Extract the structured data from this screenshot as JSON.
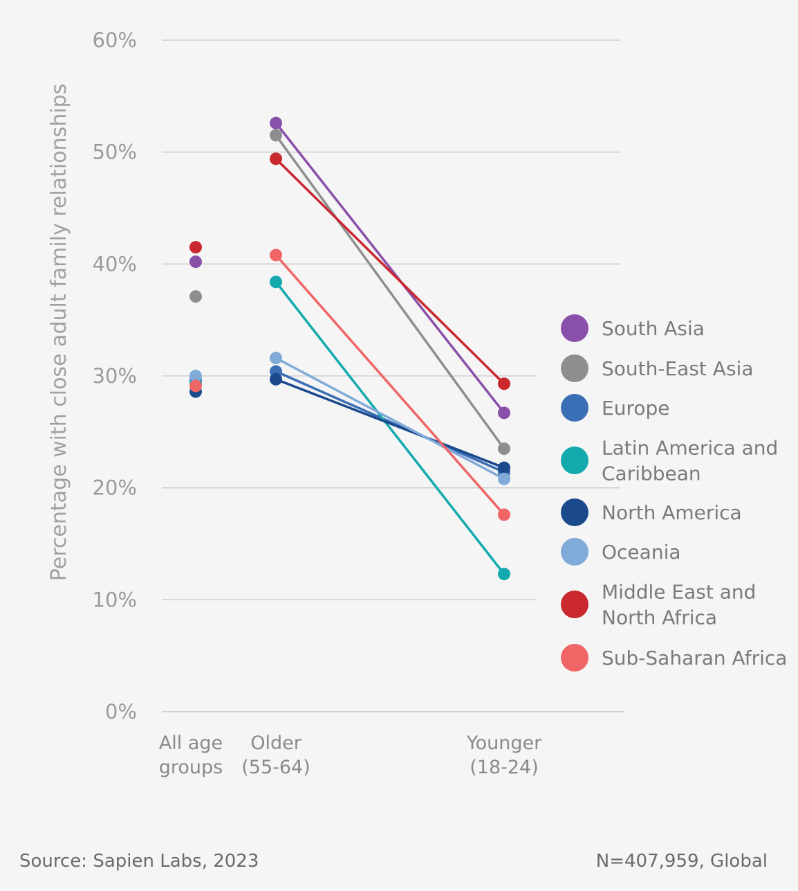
{
  "chart_data": {
    "type": "line",
    "ylabel": "Percentage with close adult family relationships",
    "ylim": [
      0,
      60
    ],
    "yticks": [
      "0%",
      "10%",
      "20%",
      "30%",
      "40%",
      "50%",
      "60%"
    ],
    "categories": [
      [
        "All age",
        "groups"
      ],
      [
        "Older",
        "(55-64)"
      ],
      [
        "Younger",
        "(18-24)"
      ]
    ],
    "grid": true,
    "legend_position": "right",
    "series": [
      {
        "name": [
          "South Asia"
        ],
        "color": "#8a4fa8",
        "values": [
          40.2,
          52.6,
          26.7
        ]
      },
      {
        "name": [
          "South-East Asia"
        ],
        "color": "#8e8e91",
        "values": [
          37.1,
          51.5,
          23.5
        ]
      },
      {
        "name": [
          "Europe"
        ],
        "color": "#3b6fb5",
        "values": [
          29.6,
          30.4,
          21.4
        ]
      },
      {
        "name": [
          "Latin America and",
          "Caribbean"
        ],
        "color": "#13aaad",
        "values": [
          29.3,
          38.4,
          12.3
        ]
      },
      {
        "name": [
          "North America"
        ],
        "color": "#1a4a8c",
        "values": [
          28.6,
          29.7,
          21.8
        ]
      },
      {
        "name": [
          "Oceania"
        ],
        "color": "#80aad8",
        "values": [
          30.0,
          31.6,
          20.8
        ]
      },
      {
        "name": [
          "Middle East and",
          "North Africa"
        ],
        "color": "#c8282e",
        "values": [
          41.5,
          49.4,
          29.3
        ]
      },
      {
        "name": [
          "Sub-Saharan Africa"
        ],
        "color": "#f06565",
        "values": [
          29.1,
          40.8,
          17.6
        ]
      }
    ]
  },
  "footer": {
    "source": "Source: Sapien Labs, 2023",
    "sample": "N=407,959, Global"
  }
}
